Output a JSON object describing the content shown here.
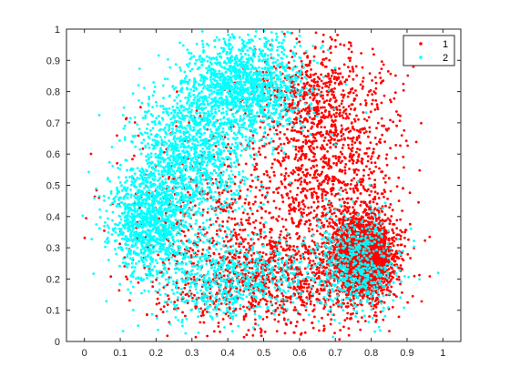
{
  "chart_data": {
    "type": "scatter",
    "title": "",
    "xlabel": "",
    "ylabel": "",
    "xlim": [
      -0.05,
      1.05
    ],
    "ylim": [
      0,
      1
    ],
    "x_ticks": [
      "0",
      "0.1",
      "0.2",
      "0.3",
      "0.4",
      "0.5",
      "0.6",
      "0.7",
      "0.8",
      "0.9",
      "1"
    ],
    "y_ticks": [
      "0",
      "0.1",
      "0.2",
      "0.3",
      "0.4",
      "0.5",
      "0.6",
      "0.7",
      "0.8",
      "0.9",
      "1"
    ],
    "grid": false,
    "legend_position": "top-right",
    "series": [
      {
        "name": "1",
        "color": "#ff0000",
        "marker": "dot",
        "approx_point_count": 5000,
        "description_regions": [
          {
            "cx": 0.78,
            "cy": 0.27,
            "sx": 0.045,
            "sy": 0.07,
            "weight": 0.38
          },
          {
            "cx": 0.7,
            "cy": 0.55,
            "sx": 0.09,
            "sy": 0.18,
            "weight": 0.22
          },
          {
            "cx": 0.5,
            "cy": 0.2,
            "sx": 0.15,
            "sy": 0.08,
            "weight": 0.2
          },
          {
            "cx": 0.4,
            "cy": 0.45,
            "sx": 0.15,
            "sy": 0.15,
            "weight": 0.12
          },
          {
            "cx": 0.62,
            "cy": 0.8,
            "sx": 0.08,
            "sy": 0.08,
            "weight": 0.08
          }
        ]
      },
      {
        "name": "2",
        "color": "#00ffff",
        "marker": "dot",
        "approx_point_count": 5000,
        "description_regions": [
          {
            "cx": 0.45,
            "cy": 0.82,
            "sx": 0.08,
            "sy": 0.08,
            "weight": 0.28
          },
          {
            "cx": 0.3,
            "cy": 0.6,
            "sx": 0.08,
            "sy": 0.1,
            "weight": 0.24
          },
          {
            "cx": 0.18,
            "cy": 0.38,
            "sx": 0.06,
            "sy": 0.08,
            "weight": 0.22
          },
          {
            "cx": 0.4,
            "cy": 0.2,
            "sx": 0.12,
            "sy": 0.07,
            "weight": 0.14
          },
          {
            "cx": 0.76,
            "cy": 0.25,
            "sx": 0.06,
            "sy": 0.08,
            "weight": 0.12
          }
        ]
      }
    ]
  }
}
